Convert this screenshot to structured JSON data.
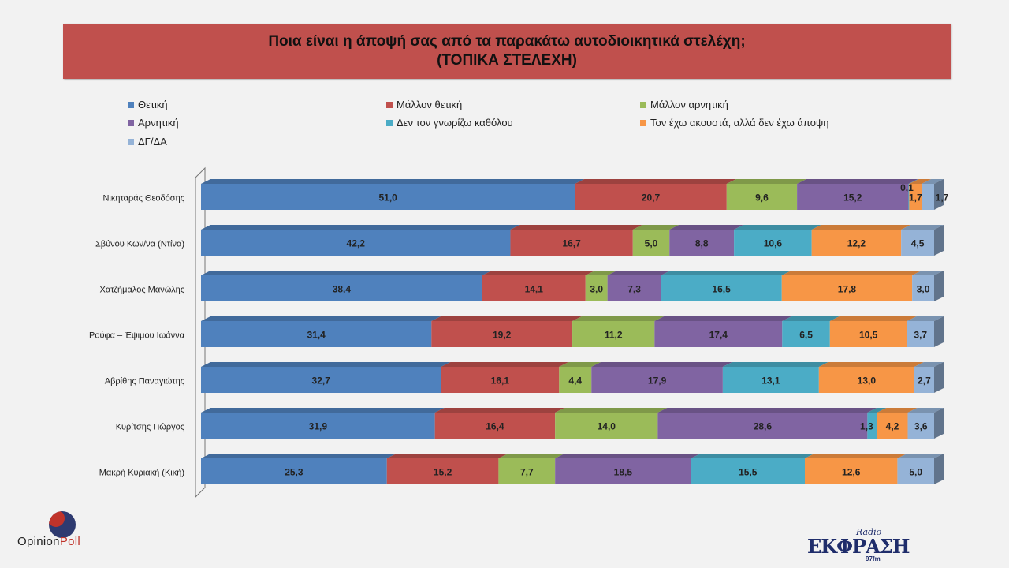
{
  "header": {
    "title_line1": "Ποια είναι η άποψή σας από τα παρακάτω αυτοδιοικητικά στελέχη;",
    "title_line2": "(ΤΟΠΙΚΑ  ΣΤΕΛΕΧΗ)"
  },
  "chart_data": {
    "type": "bar",
    "orientation": "horizontal",
    "stacked": true,
    "percent_stacked": true,
    "title": "Ποια είναι η άποψή σας από τα παρακάτω αυτοδιοικητικά στελέχη; (ΤΟΠΙΚΑ  ΣΤΕΛΕΧΗ)",
    "legend_position": "top",
    "categories": [
      "Νικηταράς Θεοδόσης",
      "Σβύνου Κων/να (Ντίνα)",
      "Χατζήμαλος Μανώλης",
      "Ρούφα – Έψιμου Ιωάννα",
      "Αβρίθης Παναγιώτης",
      "Κυρίτσης Γιώργος",
      "Μακρή Κυριακή (Κική)"
    ],
    "series": [
      {
        "name": "Θετική",
        "color": "#4f81bd",
        "values": [
          51.0,
          42.2,
          38.4,
          31.4,
          32.7,
          31.9,
          25.3
        ],
        "labels": [
          "51,0",
          "42,2",
          "38,4",
          "31,4",
          "32,7",
          "31,9",
          "25,3"
        ]
      },
      {
        "name": "Μάλλον θετική",
        "color": "#c0504d",
        "values": [
          20.7,
          16.7,
          14.1,
          19.2,
          16.1,
          16.4,
          15.2
        ],
        "labels": [
          "20,7",
          "16,7",
          "14,1",
          "19,2",
          "16,1",
          "16,4",
          "15,2"
        ]
      },
      {
        "name": "Μάλλον αρνητική",
        "color": "#9bbb59",
        "values": [
          9.6,
          5.0,
          3.0,
          11.2,
          4.4,
          14.0,
          7.7
        ],
        "labels": [
          "9,6",
          "5,0",
          "3,0",
          "11,2",
          "4,4",
          "14,0",
          "7,7"
        ]
      },
      {
        "name": "Αρνητική",
        "color": "#8064a2",
        "values": [
          15.2,
          8.8,
          7.3,
          17.4,
          17.9,
          28.6,
          18.5
        ],
        "labels": [
          "15,2",
          "8,8",
          "7,3",
          "17,4",
          "17,9",
          "28,6",
          "18,5"
        ]
      },
      {
        "name": "Δεν τον γνωρίζω καθόλου",
        "color": "#4bacc6",
        "values": [
          0.1,
          10.6,
          16.5,
          6.5,
          13.1,
          1.3,
          15.5
        ],
        "labels": [
          "0,1",
          "10,6",
          "16,5",
          "6,5",
          "13,1",
          "1,3",
          "15,5"
        ]
      },
      {
        "name": "Τον έχω ακουστά, αλλά δεν έχω άποψη",
        "color": "#f79646",
        "values": [
          1.7,
          12.2,
          17.8,
          10.5,
          13.0,
          4.2,
          12.6
        ],
        "labels": [
          "1,7",
          "12,2",
          "17,8",
          "10,5",
          "13,0",
          "4,2",
          "12,6"
        ]
      },
      {
        "name": "ΔΓ/ΔΑ",
        "color": "#95b3d7",
        "values": [
          1.7,
          4.5,
          3.0,
          3.7,
          2.7,
          3.6,
          5.0
        ],
        "labels": [
          "1,7",
          "4,5",
          "3,0",
          "3,7",
          "2,7",
          "3,6",
          "5,0"
        ]
      }
    ]
  },
  "branding": {
    "pollster_first": "Opinion",
    "pollster_second": "Poll",
    "station_radio": "Radio",
    "station_name": "ΕΚΦΡΑΣΗ",
    "station_freq": "97fm"
  }
}
